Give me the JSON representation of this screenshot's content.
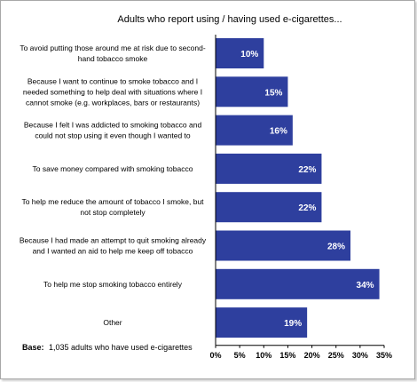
{
  "chart_data": {
    "type": "bar",
    "orientation": "horizontal",
    "title": "Adults who report using / having used e-cigarettes...",
    "categories": [
      [
        "To avoid putting those around me at risk due to second-",
        "hand tobacco smoke"
      ],
      [
        "Because I want to continue to smoke tobacco and I",
        "needed something to help deal with situations where I",
        "cannot smoke (e.g. workplaces, bars or restaurants)"
      ],
      [
        "Because I felt I was addicted to smoking tobacco and",
        "could not stop using it even though I wanted to"
      ],
      [
        "To save money compared with smoking tobacco"
      ],
      [
        "To help me reduce the amount of tobacco I smoke, but",
        "not stop completely"
      ],
      [
        "Because I had made an attempt to quit smoking already",
        "and I wanted an aid to help me keep off tobacco"
      ],
      [
        "To help me stop smoking tobacco entirely"
      ],
      [
        "Other"
      ]
    ],
    "values": [
      10,
      15,
      16,
      22,
      22,
      28,
      34,
      19
    ],
    "data_labels": [
      "10%",
      "15%",
      "16%",
      "22%",
      "22%",
      "28%",
      "34%",
      "19%"
    ],
    "xlim": [
      0,
      35
    ],
    "x_ticks": [
      "0%",
      "5%",
      "10%",
      "15%",
      "20%",
      "25%",
      "30%",
      "35%"
    ],
    "grid": false,
    "bar_color": "#2E3F9E",
    "label_color": "#ffffff"
  },
  "footnote": {
    "label": "Base:",
    "text": "1,035 adults who have used e-cigarettes"
  }
}
